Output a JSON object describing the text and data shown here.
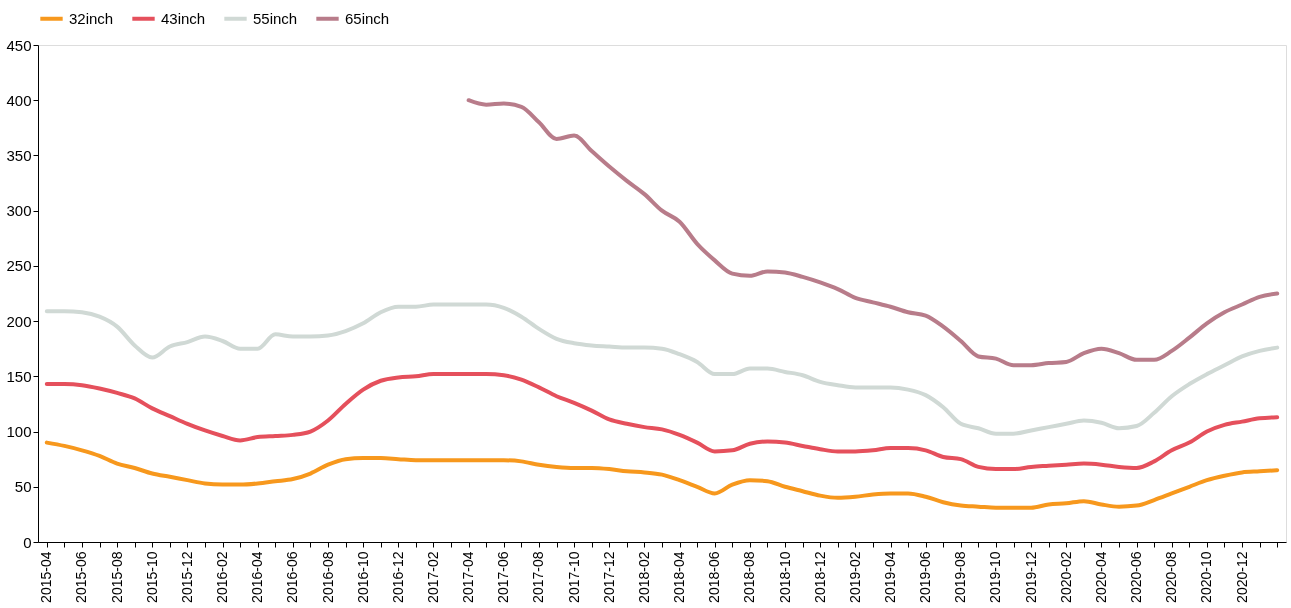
{
  "chart_data": {
    "type": "line",
    "categories": [
      "2015-04",
      null,
      "2015-06",
      null,
      "2015-08",
      null,
      "2015-10",
      null,
      "2015-12",
      null,
      "2016-02",
      null,
      "2016-04",
      null,
      "2016-06",
      null,
      "2016-08",
      null,
      "2016-10",
      null,
      "2016-12",
      null,
      "2017-02",
      null,
      "2017-04",
      null,
      "2017-06",
      null,
      "2017-08",
      null,
      "2017-10",
      null,
      "2017-12",
      null,
      "2018-02",
      null,
      "2018-04",
      null,
      "2018-06",
      null,
      "2018-08",
      null,
      "2018-10",
      null,
      "2018-12",
      null,
      "2019-02",
      null,
      "2019-04",
      null,
      "2019-06",
      null,
      "2019-08",
      null,
      "2019-10",
      null,
      "2019-12",
      null,
      "2020-02",
      null,
      "2020-04",
      null,
      "2020-06",
      null,
      "2020-08",
      null,
      "2020-10",
      null,
      "2020-12",
      null,
      null
    ],
    "series": [
      {
        "name": "32inch",
        "color": "#f7981d",
        "values": [
          90,
          87,
          83,
          78,
          71,
          67,
          62,
          59,
          56,
          53,
          52,
          52,
          53,
          55,
          57,
          62,
          70,
          75,
          76,
          76,
          75,
          74,
          74,
          74,
          74,
          74,
          74,
          73,
          70,
          68,
          67,
          67,
          66,
          64,
          63,
          61,
          56,
          50,
          44,
          52,
          56,
          55,
          50,
          46,
          42,
          40,
          41,
          43,
          44,
          44,
          41,
          36,
          33,
          32,
          31,
          31,
          31,
          34,
          35,
          37,
          34,
          32,
          33,
          38,
          44,
          50,
          56,
          60,
          63,
          64,
          65
        ]
      },
      {
        "name": "43inch",
        "color": "#e5505c",
        "values": [
          143,
          143,
          142,
          139,
          135,
          130,
          121,
          114,
          107,
          101,
          96,
          92,
          95,
          96,
          97,
          100,
          110,
          125,
          138,
          146,
          149,
          150,
          152,
          152,
          152,
          152,
          151,
          147,
          140,
          132,
          126,
          119,
          111,
          107,
          104,
          102,
          97,
          90,
          82,
          83,
          89,
          91,
          90,
          87,
          84,
          82,
          82,
          83,
          85,
          85,
          83,
          77,
          75,
          68,
          66,
          66,
          68,
          69,
          70,
          71,
          70,
          68,
          67,
          73,
          83,
          90,
          100,
          106,
          109,
          112,
          113
        ]
      },
      {
        "name": "55inch",
        "color": "#d0d9d5",
        "values": [
          209,
          209,
          208,
          204,
          195,
          178,
          167,
          177,
          181,
          186,
          182,
          175,
          175,
          188,
          186,
          186,
          187,
          191,
          198,
          208,
          213,
          213,
          215,
          215,
          215,
          215,
          212,
          204,
          193,
          184,
          180,
          178,
          177,
          176,
          176,
          175,
          170,
          163,
          152,
          152,
          157,
          157,
          154,
          151,
          145,
          142,
          140,
          140,
          140,
          138,
          133,
          122,
          107,
          103,
          98,
          98,
          101,
          104,
          107,
          110,
          108,
          103,
          105,
          117,
          132,
          143,
          152,
          160,
          168,
          173,
          176
        ]
      },
      {
        "name": "65inch",
        "color": "#b87c8a",
        "values": [
          null,
          null,
          null,
          null,
          null,
          null,
          null,
          null,
          null,
          null,
          null,
          null,
          null,
          null,
          null,
          null,
          null,
          null,
          null,
          null,
          null,
          null,
          null,
          null,
          400,
          396,
          397,
          394,
          380,
          365,
          368,
          354,
          340,
          327,
          315,
          300,
          290,
          270,
          255,
          243,
          241,
          245,
          244,
          240,
          235,
          229,
          221,
          217,
          213,
          208,
          205,
          195,
          182,
          168,
          166,
          160,
          160,
          162,
          163,
          171,
          175,
          171,
          165,
          165,
          173,
          185,
          198,
          208,
          215,
          222,
          225
        ]
      }
    ],
    "ylim": [
      0,
      450
    ],
    "yticks": [
      0,
      50,
      100,
      150,
      200,
      250,
      300,
      350,
      400,
      450
    ],
    "grid": false,
    "legend": "top",
    "marker": "none",
    "line_style": "solid"
  }
}
